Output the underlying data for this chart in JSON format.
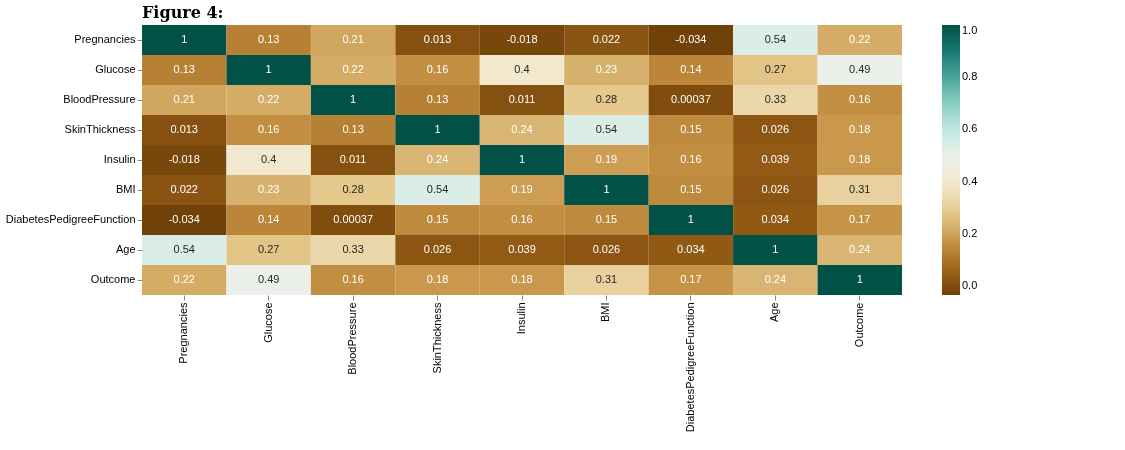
{
  "chart_data": {
    "type": "heatmap",
    "title": "Figure 4:",
    "categories": [
      "Pregnancies",
      "Glucose",
      "BloodPressure",
      "SkinThickness",
      "Insulin",
      "BMI",
      "DiabetesPedigreeFunction",
      "Age",
      "Outcome"
    ],
    "y_categories": [
      "Pregnancies",
      "Glucose",
      "BloodPressure",
      "SkinThickness",
      "Insulin",
      "BMI",
      "DiabetesPedigreeFunction",
      "Age",
      "Outcome"
    ],
    "cells": [
      [
        1,
        0.13,
        0.21,
        0.013,
        -0.018,
        0.022,
        -0.034,
        0.54,
        0.22
      ],
      [
        0.13,
        1,
        0.22,
        0.16,
        0.4,
        0.23,
        0.14,
        0.27,
        0.49
      ],
      [
        0.21,
        0.22,
        1,
        0.13,
        0.011,
        0.28,
        0.00037,
        0.33,
        0.16
      ],
      [
        0.013,
        0.16,
        0.13,
        1,
        0.24,
        0.54,
        0.15,
        0.026,
        0.18
      ],
      [
        -0.018,
        0.4,
        0.011,
        0.24,
        1,
        0.19,
        0.16,
        0.039,
        0.18
      ],
      [
        0.022,
        0.23,
        0.28,
        0.54,
        0.19,
        1,
        0.15,
        0.026,
        0.31
      ],
      [
        -0.034,
        0.14,
        0.00037,
        0.15,
        0.16,
        0.15,
        1,
        0.034,
        0.17
      ],
      [
        0.54,
        0.27,
        0.33,
        0.026,
        0.039,
        0.026,
        0.034,
        1,
        0.24
      ],
      [
        0.22,
        0.49,
        0.16,
        0.18,
        0.18,
        0.31,
        0.17,
        0.24,
        1
      ]
    ],
    "clim": [
      -0.034,
      1
    ],
    "cticks": [
      {
        "value": 0,
        "label": "0.0"
      },
      {
        "value": 0.2,
        "label": "0.2"
      },
      {
        "value": 0.4,
        "label": "0.4"
      },
      {
        "value": 0.6,
        "label": "0.6"
      },
      {
        "value": 0.8,
        "label": "0.8"
      },
      {
        "value": 1,
        "label": "1.0"
      }
    ],
    "data_labels": true
  }
}
